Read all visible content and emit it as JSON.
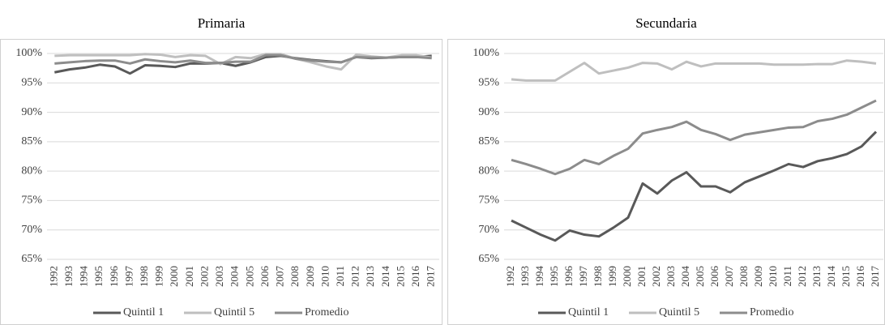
{
  "chart_data": [
    {
      "type": "line",
      "title": "Primaria",
      "categories": [
        "1992",
        "1993",
        "1994",
        "1995",
        "1996",
        "1997",
        "1998",
        "1999",
        "2000",
        "2001",
        "2002",
        "2003",
        "2004",
        "2005",
        "2006",
        "2007",
        "2008",
        "2009",
        "2010",
        "2011",
        "2012",
        "2013",
        "2014",
        "2015",
        "2016",
        "2017"
      ],
      "series": [
        {
          "name": "Quintil 1",
          "color": "#595959",
          "values": [
            96.8,
            97.3,
            97.6,
            98.1,
            97.8,
            96.6,
            98.0,
            97.9,
            97.7,
            98.3,
            98.3,
            98.4,
            97.9,
            98.5,
            99.4,
            99.6,
            99.2,
            98.9,
            98.7,
            98.5,
            99.4,
            99.2,
            99.3,
            99.4,
            99.4,
            99.6
          ]
        },
        {
          "name": "Quintil 5",
          "color": "#bfbfbf",
          "values": [
            99.6,
            99.7,
            99.7,
            99.7,
            99.7,
            99.7,
            99.9,
            99.8,
            99.4,
            99.7,
            99.6,
            98.2,
            99.4,
            99.2,
            99.9,
            99.9,
            99.1,
            98.5,
            97.8,
            97.3,
            99.8,
            99.5,
            99.3,
            99.7,
            99.7,
            99.3
          ]
        },
        {
          "name": "Promedio",
          "color": "#8c8c8c",
          "values": [
            98.3,
            98.5,
            98.7,
            98.8,
            98.8,
            98.3,
            99.0,
            98.7,
            98.5,
            98.8,
            98.4,
            98.4,
            98.6,
            98.6,
            99.7,
            99.7,
            99.1,
            98.8,
            98.6,
            98.5,
            99.4,
            99.3,
            99.3,
            99.4,
            99.4,
            99.2
          ]
        }
      ],
      "ylim": [
        65,
        100
      ],
      "yticks": [
        {
          "value": 65,
          "label": "65%"
        },
        {
          "value": 70,
          "label": "70%"
        },
        {
          "value": 75,
          "label": "75%"
        },
        {
          "value": 80,
          "label": "80%"
        },
        {
          "value": 85,
          "label": "85%"
        },
        {
          "value": 90,
          "label": "90%"
        },
        {
          "value": 95,
          "label": "95%"
        },
        {
          "value": 100,
          "label": "100%"
        }
      ],
      "grid": true,
      "legend": "bottom"
    },
    {
      "type": "line",
      "title": "Secundaria",
      "categories": [
        "1992",
        "1993",
        "1994",
        "1995",
        "1996",
        "1997",
        "1998",
        "1999",
        "2000",
        "2001",
        "2002",
        "2003",
        "2004",
        "2005",
        "2006",
        "2007",
        "2008",
        "2009",
        "2010",
        "2011",
        "2012",
        "2013",
        "2014",
        "2015",
        "2016",
        "2017"
      ],
      "series": [
        {
          "name": "Quintil 1",
          "color": "#595959",
          "values": [
            71.6,
            70.4,
            69.2,
            68.2,
            69.9,
            69.2,
            68.9,
            70.4,
            72.1,
            77.9,
            76.2,
            78.4,
            79.8,
            77.4,
            77.4,
            76.4,
            78.1,
            79.1,
            80.1,
            81.2,
            80.7,
            81.7,
            82.2,
            82.9,
            84.2,
            86.7
          ]
        },
        {
          "name": "Quintil 5",
          "color": "#bfbfbf",
          "values": [
            95.6,
            95.4,
            95.4,
            95.4,
            96.9,
            98.4,
            96.6,
            97.1,
            97.6,
            98.4,
            98.3,
            97.3,
            98.6,
            97.8,
            98.3,
            98.3,
            98.3,
            98.3,
            98.1,
            98.1,
            98.1,
            98.2,
            98.2,
            98.8,
            98.6,
            98.3
          ]
        },
        {
          "name": "Promedio",
          "color": "#8c8c8c",
          "values": [
            81.9,
            81.2,
            80.4,
            79.5,
            80.4,
            81.9,
            81.2,
            82.6,
            83.8,
            86.4,
            87.0,
            87.5,
            88.4,
            87.0,
            86.3,
            85.3,
            86.2,
            86.6,
            87.0,
            87.4,
            87.5,
            88.5,
            88.9,
            89.6,
            90.8,
            92.0
          ]
        }
      ],
      "ylim": [
        65,
        100
      ],
      "yticks": [
        {
          "value": 65,
          "label": "65%"
        },
        {
          "value": 70,
          "label": "70%"
        },
        {
          "value": 75,
          "label": "75%"
        },
        {
          "value": 80,
          "label": "80%"
        },
        {
          "value": 85,
          "label": "85%"
        },
        {
          "value": 90,
          "label": "90%"
        },
        {
          "value": 95,
          "label": "95%"
        },
        {
          "value": 100,
          "label": "100%"
        }
      ],
      "grid": true,
      "legend": "bottom"
    }
  ]
}
